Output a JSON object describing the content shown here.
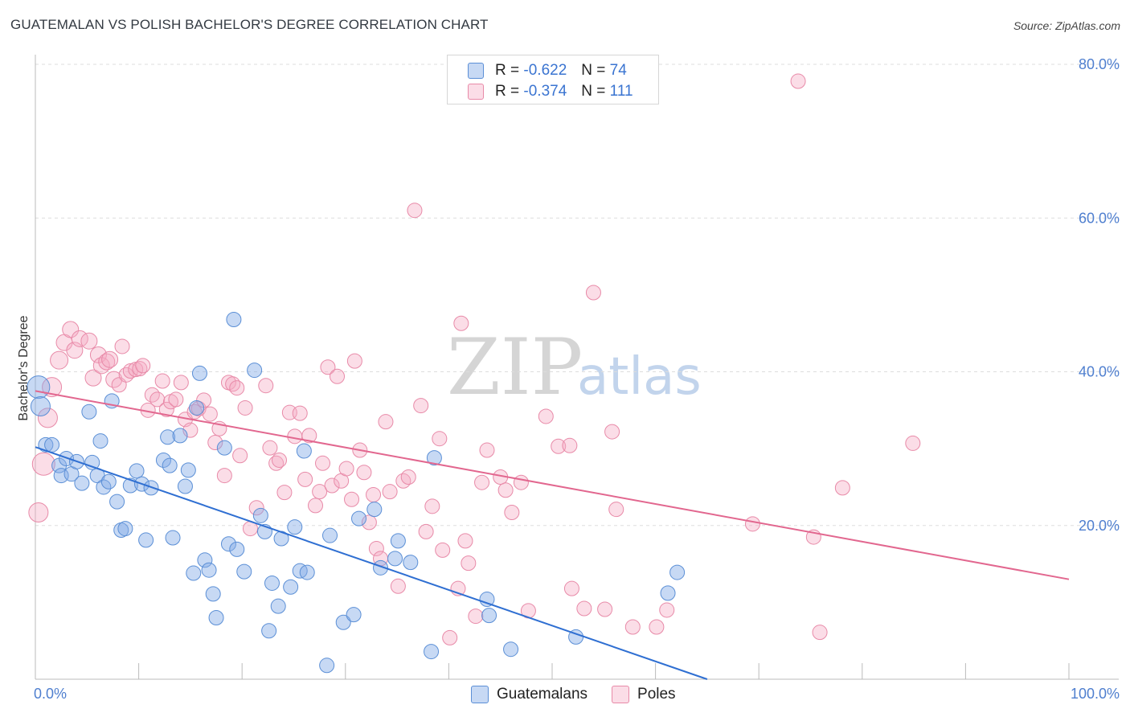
{
  "title": "GUATEMALAN VS POLISH BACHELOR'S DEGREE CORRELATION CHART",
  "source": "Source: ZipAtlas.com",
  "watermark": {
    "zip": "ZIP",
    "atlas": "atlas"
  },
  "legend": {
    "r_label": "R =",
    "n_label": "N =",
    "guatemalans": {
      "r": "-0.622",
      "n": "74"
    },
    "poles": {
      "r": "-0.374",
      "n": "111"
    }
  },
  "bottom_legend": {
    "guatemalans": "Guatemalans",
    "poles": "Poles"
  },
  "colors": {
    "blue_fill": "rgba(130,170,230,0.45)",
    "blue_stroke": "#5b8fd6",
    "blue_line": "#2f6fd2",
    "pink_fill": "rgba(245,170,195,0.40)",
    "pink_stroke": "#e88aa8",
    "pink_line": "#e2678f",
    "axis_text": "#4f7fcf",
    "grid": "#dddddd"
  },
  "chart_data": {
    "type": "scatter",
    "title": "GUATEMALAN VS POLISH BACHELOR'S DEGREE CORRELATION CHART",
    "xlabel": "",
    "ylabel": "Bachelor's Degree",
    "xlim": [
      0,
      100
    ],
    "ylim": [
      0,
      80
    ],
    "x_tick_labels": [
      "0.0%",
      "100.0%"
    ],
    "y_ticks": [
      20,
      40,
      60,
      80
    ],
    "y_tick_labels": [
      "20.0%",
      "40.0%",
      "60.0%",
      "80.0%"
    ],
    "grid": true,
    "legend_position": "top-center",
    "series": [
      {
        "name": "Guatemalans",
        "r": -0.622,
        "n": 74,
        "trendline": {
          "x0": 0,
          "y0": 30.2,
          "x1": 65,
          "y1": 0
        },
        "points": [
          [
            0.3,
            38,
            14
          ],
          [
            0.5,
            35.5,
            12
          ],
          [
            1,
            30.5,
            9
          ],
          [
            1.6,
            30.5,
            9
          ],
          [
            2.3,
            27.8,
            9
          ],
          [
            2.5,
            26.5,
            9
          ],
          [
            3,
            28.7,
            9
          ],
          [
            3.5,
            26.7,
            9
          ],
          [
            4,
            28.3,
            9
          ],
          [
            4.5,
            25.5,
            9
          ],
          [
            5.2,
            34.8,
            9
          ],
          [
            5.5,
            28.2,
            9
          ],
          [
            6,
            26.5,
            9
          ],
          [
            6.3,
            31,
            9
          ],
          [
            6.6,
            25,
            9
          ],
          [
            7.1,
            25.7,
            9
          ],
          [
            7.4,
            36.2,
            9
          ],
          [
            7.9,
            23.1,
            9
          ],
          [
            8.3,
            19.4,
            9
          ],
          [
            8.7,
            19.6,
            9
          ],
          [
            9.2,
            25.2,
            9
          ],
          [
            9.8,
            27.1,
            9
          ],
          [
            10.3,
            25.4,
            9
          ],
          [
            10.7,
            18.1,
            9
          ],
          [
            11.2,
            24.9,
            9
          ],
          [
            12.4,
            28.5,
            9
          ],
          [
            12.8,
            31.5,
            9
          ],
          [
            13,
            27.8,
            9
          ],
          [
            13.3,
            18.4,
            9
          ],
          [
            14,
            31.7,
            9
          ],
          [
            14.5,
            25.1,
            9
          ],
          [
            14.8,
            27.2,
            9
          ],
          [
            15.3,
            13.8,
            9
          ],
          [
            15.6,
            35.3,
            9
          ],
          [
            15.9,
            39.8,
            9
          ],
          [
            16.4,
            15.5,
            9
          ],
          [
            16.8,
            14.2,
            9
          ],
          [
            17.2,
            11.1,
            9
          ],
          [
            17.5,
            8,
            9
          ],
          [
            18.3,
            30.1,
            9
          ],
          [
            18.7,
            17.6,
            9
          ],
          [
            19.2,
            46.8,
            9
          ],
          [
            19.5,
            16.9,
            9
          ],
          [
            20.2,
            14,
            9
          ],
          [
            21.2,
            40.2,
            9
          ],
          [
            21.8,
            21.3,
            9
          ],
          [
            22.2,
            19.2,
            9
          ],
          [
            22.6,
            6.3,
            9
          ],
          [
            22.9,
            12.5,
            9
          ],
          [
            23.5,
            9.5,
            9
          ],
          [
            23.8,
            18.3,
            9
          ],
          [
            24.7,
            12,
            9
          ],
          [
            25.1,
            19.8,
            9
          ],
          [
            25.6,
            14.1,
            9
          ],
          [
            26,
            29.7,
            9
          ],
          [
            26.3,
            13.9,
            9
          ],
          [
            28.2,
            1.8,
            9
          ],
          [
            28.5,
            18.7,
            9
          ],
          [
            29.8,
            7.4,
            9
          ],
          [
            30.8,
            8.4,
            9
          ],
          [
            31.3,
            20.9,
            9
          ],
          [
            32.8,
            22.1,
            9
          ],
          [
            33.4,
            14.5,
            9
          ],
          [
            34.8,
            15.7,
            9
          ],
          [
            35.1,
            18,
            9
          ],
          [
            36.3,
            15.2,
            9
          ],
          [
            38.3,
            3.6,
            9
          ],
          [
            38.6,
            28.8,
            9
          ],
          [
            43.7,
            10.4,
            9
          ],
          [
            43.9,
            8.3,
            9
          ],
          [
            46,
            3.9,
            9
          ],
          [
            52.3,
            5.5,
            9
          ],
          [
            61.2,
            11.2,
            9
          ],
          [
            62.1,
            13.9,
            9
          ]
        ]
      },
      {
        "name": "Poles",
        "r": -0.374,
        "n": 111,
        "trendline": {
          "x0": 0,
          "y0": 37.5,
          "x1": 100,
          "y1": 13
        },
        "points": [
          [
            0.3,
            21.7,
            12
          ],
          [
            0.8,
            28,
            14
          ],
          [
            1.2,
            34,
            12
          ],
          [
            1.6,
            38,
            12
          ],
          [
            2.3,
            41.5,
            11
          ],
          [
            2.8,
            43.8,
            10
          ],
          [
            3.4,
            45.5,
            10
          ],
          [
            3.8,
            42.8,
            10
          ],
          [
            4.3,
            44.3,
            10
          ],
          [
            5.2,
            44,
            10
          ],
          [
            5.6,
            39.2,
            10
          ],
          [
            6.1,
            42.2,
            10
          ],
          [
            6.4,
            40.8,
            10
          ],
          [
            6.9,
            41.3,
            10
          ],
          [
            7.2,
            41.6,
            10
          ],
          [
            7.6,
            39,
            10
          ],
          [
            8.1,
            38.3,
            9
          ],
          [
            8.4,
            43.3,
            9
          ],
          [
            8.8,
            39.6,
            9
          ],
          [
            9.2,
            40.1,
            9
          ],
          [
            9.7,
            40.3,
            9
          ],
          [
            10.1,
            40.4,
            9
          ],
          [
            10.4,
            40.8,
            9
          ],
          [
            10.9,
            35,
            9
          ],
          [
            11.3,
            37,
            9
          ],
          [
            11.8,
            36.4,
            9
          ],
          [
            12.3,
            38.8,
            9
          ],
          [
            12.7,
            35.1,
            9
          ],
          [
            13.1,
            36.1,
            9
          ],
          [
            13.6,
            36.4,
            9
          ],
          [
            14.1,
            38.6,
            9
          ],
          [
            14.5,
            33.8,
            9
          ],
          [
            15,
            32.4,
            9
          ],
          [
            15.4,
            34.8,
            9
          ],
          [
            15.8,
            35.2,
            9
          ],
          [
            16.3,
            36.3,
            9
          ],
          [
            16.9,
            34.5,
            9
          ],
          [
            17.4,
            30.8,
            9
          ],
          [
            17.8,
            32.6,
            9
          ],
          [
            18.3,
            26.5,
            9
          ],
          [
            18.7,
            38.6,
            9
          ],
          [
            19.1,
            38.4,
            9
          ],
          [
            19.5,
            37.9,
            9
          ],
          [
            19.8,
            29.1,
            9
          ],
          [
            20.3,
            35.3,
            9
          ],
          [
            20.8,
            19.6,
            9
          ],
          [
            21.4,
            22.3,
            9
          ],
          [
            22.3,
            38.2,
            9
          ],
          [
            22.7,
            30.1,
            9
          ],
          [
            23.3,
            28.1,
            9
          ],
          [
            23.6,
            28.5,
            9
          ],
          [
            24.1,
            24.3,
            9
          ],
          [
            24.6,
            34.7,
            9
          ],
          [
            25.1,
            31.6,
            9
          ],
          [
            25.6,
            34.6,
            9
          ],
          [
            26.1,
            26,
            9
          ],
          [
            26.5,
            31.7,
            9
          ],
          [
            27.1,
            22.6,
            9
          ],
          [
            27.5,
            24.4,
            9
          ],
          [
            27.8,
            28.1,
            9
          ],
          [
            28.3,
            40.6,
            9
          ],
          [
            28.7,
            25.2,
            9
          ],
          [
            29.2,
            39.4,
            9
          ],
          [
            29.6,
            25.8,
            9
          ],
          [
            30.1,
            27.4,
            9
          ],
          [
            30.6,
            23.4,
            9
          ],
          [
            30.9,
            41.4,
            9
          ],
          [
            31.4,
            29.8,
            9
          ],
          [
            31.8,
            26.9,
            9
          ],
          [
            32.3,
            20.4,
            9
          ],
          [
            32.7,
            24,
            9
          ],
          [
            33,
            17,
            9
          ],
          [
            33.4,
            15.7,
            9
          ],
          [
            33.9,
            33.5,
            9
          ],
          [
            34.3,
            24.4,
            9
          ],
          [
            35.1,
            12.1,
            9
          ],
          [
            35.6,
            25.8,
            9
          ],
          [
            36.1,
            26.3,
            9
          ],
          [
            36.7,
            61,
            9
          ],
          [
            37.3,
            35.6,
            9
          ],
          [
            37.8,
            19.2,
            9
          ],
          [
            38.4,
            22.5,
            9
          ],
          [
            39.1,
            31.3,
            9
          ],
          [
            39.4,
            16.8,
            9
          ],
          [
            40.1,
            5.4,
            9
          ],
          [
            40.9,
            11.8,
            9
          ],
          [
            41.2,
            46.3,
            9
          ],
          [
            41.6,
            18,
            9
          ],
          [
            41.9,
            15.1,
            9
          ],
          [
            42.6,
            8.2,
            9
          ],
          [
            43.2,
            25.6,
            9
          ],
          [
            43.7,
            29.8,
            9
          ],
          [
            45,
            26.3,
            9
          ],
          [
            45.5,
            24.6,
            9
          ],
          [
            46.1,
            21.7,
            9
          ],
          [
            47,
            25.6,
            9
          ],
          [
            47.7,
            8.9,
            9
          ],
          [
            49.4,
            34.2,
            9
          ],
          [
            50.6,
            30.3,
            9
          ],
          [
            51.7,
            30.4,
            9
          ],
          [
            51.9,
            11.8,
            9
          ],
          [
            53.1,
            9.2,
            9
          ],
          [
            54,
            50.3,
            9
          ],
          [
            55.1,
            9.1,
            9
          ],
          [
            55.8,
            32.2,
            9
          ],
          [
            56.2,
            22.1,
            9
          ],
          [
            57.8,
            6.8,
            9
          ],
          [
            60.1,
            6.8,
            9
          ],
          [
            61.1,
            9,
            9
          ],
          [
            69.4,
            20.2,
            9
          ],
          [
            73.8,
            77.8,
            9
          ],
          [
            75.3,
            18.5,
            9
          ],
          [
            75.9,
            6.1,
            9
          ],
          [
            78.1,
            24.9,
            9
          ],
          [
            84.9,
            30.7,
            9
          ]
        ]
      }
    ]
  }
}
